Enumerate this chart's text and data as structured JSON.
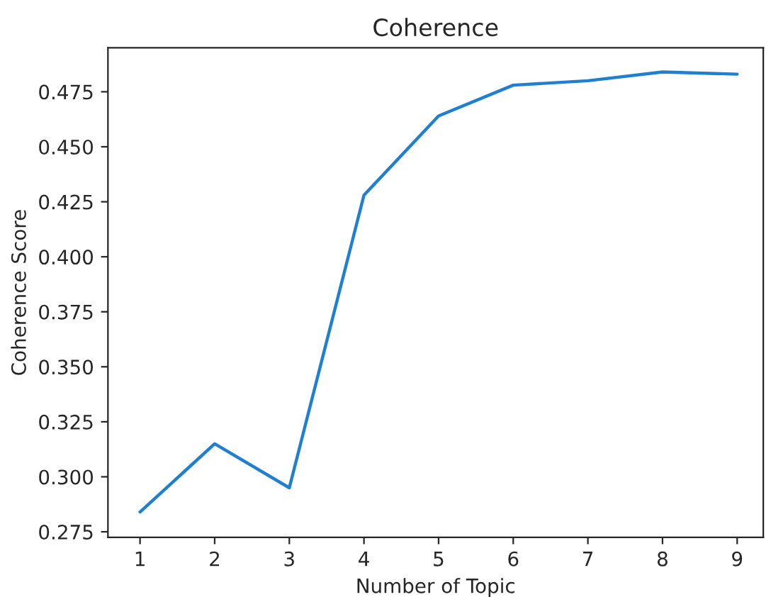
{
  "chart_data": {
    "type": "line",
    "title": "Coherence",
    "xlabel": "Number of Topic",
    "ylabel": "Coherence Score",
    "x": [
      1,
      2,
      3,
      4,
      5,
      6,
      7,
      8,
      9
    ],
    "series": [
      {
        "color": "#1f7fd0",
        "values": [
          0.284,
          0.315,
          0.295,
          0.428,
          0.464,
          0.478,
          0.48,
          0.484,
          0.483
        ]
      }
    ],
    "xlim": [
      0.57,
      9.35
    ],
    "ylim": [
      0.2725,
      0.495
    ],
    "xticks": [
      1,
      2,
      3,
      4,
      5,
      6,
      7,
      8,
      9
    ],
    "yticks": [
      {
        "value": 0.275,
        "label": "0.275"
      },
      {
        "value": 0.3,
        "label": "0.300"
      },
      {
        "value": 0.325,
        "label": "0.325"
      },
      {
        "value": 0.35,
        "label": "0.350"
      },
      {
        "value": 0.375,
        "label": "0.375"
      },
      {
        "value": 0.4,
        "label": "0.400"
      },
      {
        "value": 0.425,
        "label": "0.425"
      },
      {
        "value": 0.45,
        "label": "0.450"
      },
      {
        "value": 0.475,
        "label": "0.475"
      }
    ],
    "grid": false,
    "legend": false
  }
}
